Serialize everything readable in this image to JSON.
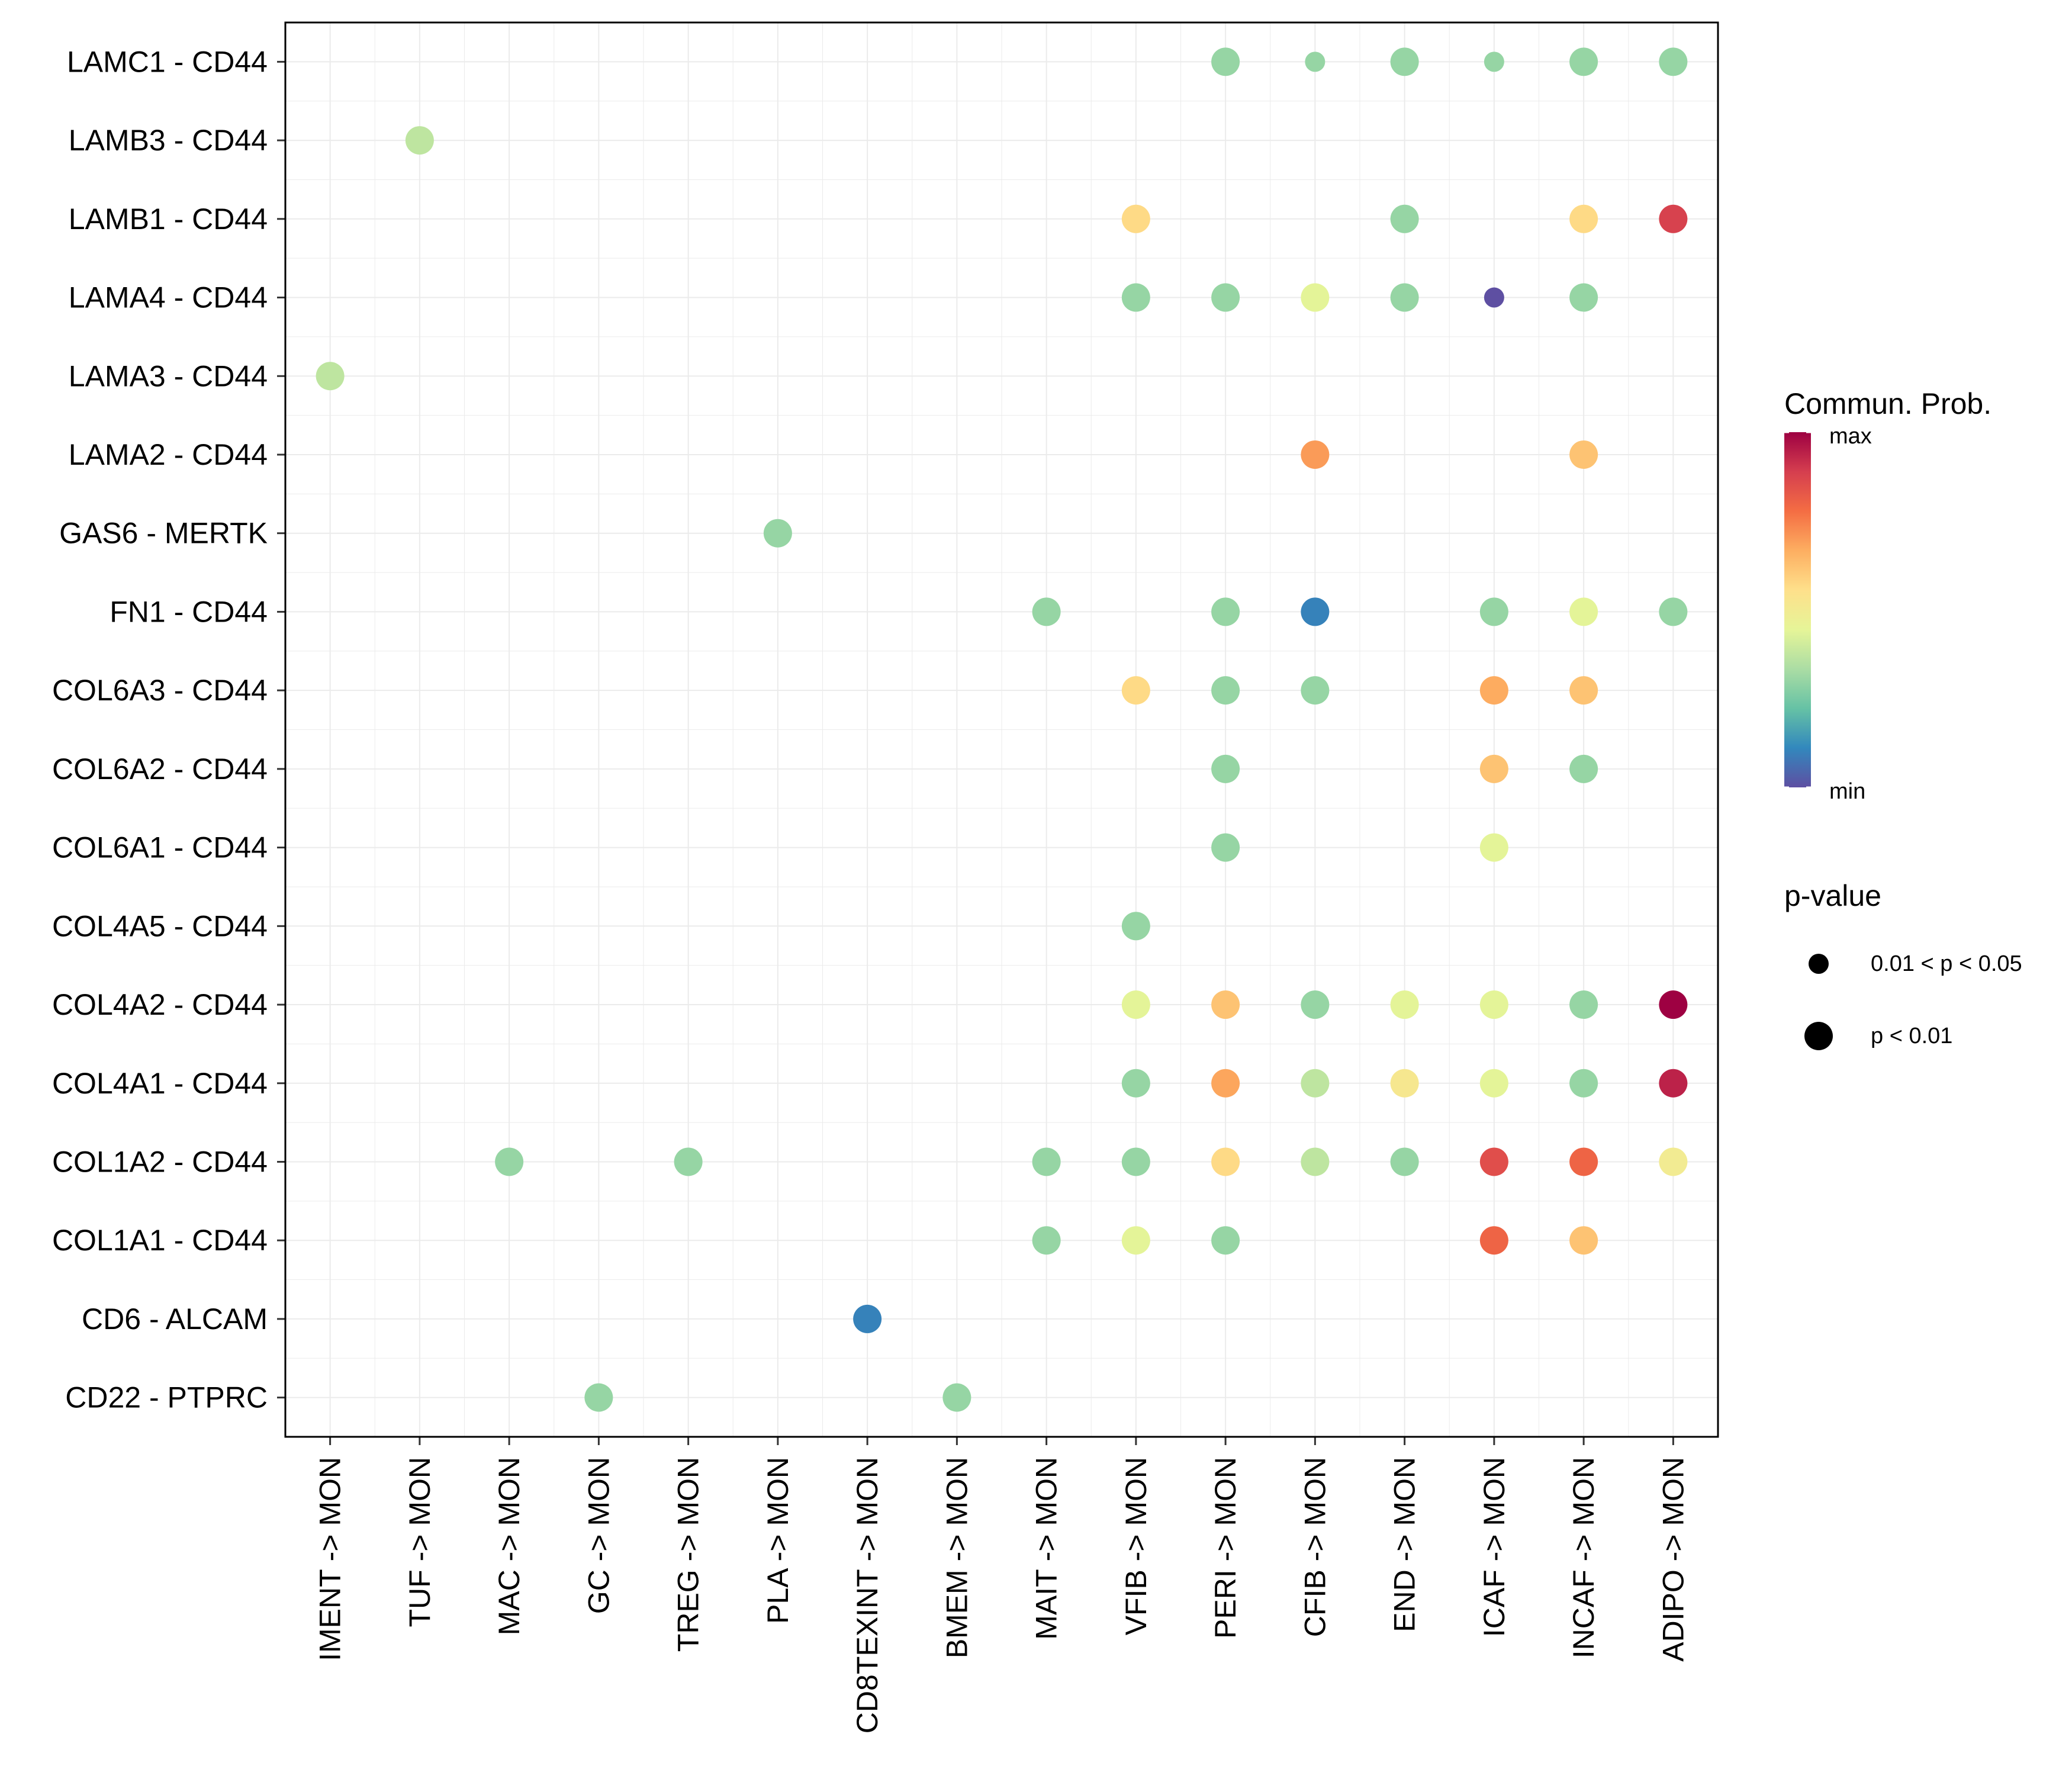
{
  "chart_data": {
    "type": "bubble",
    "title": "",
    "xlabel": "",
    "ylabel": "",
    "x_categories": [
      "IMENT -> MON",
      "TUF -> MON",
      "MAC -> MON",
      "GC -> MON",
      "TREG -> MON",
      "PLA -> MON",
      "CD8TEXINT -> MON",
      "BMEM -> MON",
      "MAIT -> MON",
      "VFIB -> MON",
      "PERI -> MON",
      "CFIB -> MON",
      "END -> MON",
      "ICAF -> MON",
      "INCAF -> MON",
      "ADIPO -> MON"
    ],
    "y_categories": [
      "LAMC1 - CD44",
      "LAMB3 - CD44",
      "LAMB1 - CD44",
      "LAMA4 - CD44",
      "LAMA3 - CD44",
      "LAMA2 - CD44",
      "GAS6 - MERTK",
      "FN1 - CD44",
      "COL6A3 - CD44",
      "COL6A2 - CD44",
      "COL6A1 - CD44",
      "COL4A5 - CD44",
      "COL4A2 - CD44",
      "COL4A1 - CD44",
      "COL1A2 - CD44",
      "COL1A1 - CD44",
      "CD6 - ALCAM",
      "CD22 - PTPRC"
    ],
    "value_note": "prob is relative communication probability on a 0 (min) to 1 (max) color scale; p is the p-value class (0 = p < 0.01, 1 = 0.01 < p < 0.05)",
    "points": [
      {
        "y": "LAMC1 - CD44",
        "x": "PERI -> MON",
        "prob": 0.3,
        "p": 0
      },
      {
        "y": "LAMC1 - CD44",
        "x": "CFIB -> MON",
        "prob": 0.3,
        "p": 1
      },
      {
        "y": "LAMC1 - CD44",
        "x": "END -> MON",
        "prob": 0.3,
        "p": 0
      },
      {
        "y": "LAMC1 - CD44",
        "x": "ICAF -> MON",
        "prob": 0.3,
        "p": 1
      },
      {
        "y": "LAMC1 - CD44",
        "x": "INCAF -> MON",
        "prob": 0.3,
        "p": 0
      },
      {
        "y": "LAMC1 - CD44",
        "x": "ADIPO -> MON",
        "prob": 0.3,
        "p": 0
      },
      {
        "y": "LAMB3 - CD44",
        "x": "TUF -> MON",
        "prob": 0.37,
        "p": 0
      },
      {
        "y": "LAMB1 - CD44",
        "x": "VFIB -> MON",
        "prob": 0.57,
        "p": 0
      },
      {
        "y": "LAMB1 - CD44",
        "x": "END -> MON",
        "prob": 0.3,
        "p": 0
      },
      {
        "y": "LAMB1 - CD44",
        "x": "INCAF -> MON",
        "prob": 0.57,
        "p": 0
      },
      {
        "y": "LAMB1 - CD44",
        "x": "ADIPO -> MON",
        "prob": 0.88,
        "p": 0
      },
      {
        "y": "LAMA4 - CD44",
        "x": "VFIB -> MON",
        "prob": 0.3,
        "p": 0
      },
      {
        "y": "LAMA4 - CD44",
        "x": "PERI -> MON",
        "prob": 0.3,
        "p": 0
      },
      {
        "y": "LAMA4 - CD44",
        "x": "CFIB -> MON",
        "prob": 0.44,
        "p": 0
      },
      {
        "y": "LAMA4 - CD44",
        "x": "END -> MON",
        "prob": 0.3,
        "p": 0
      },
      {
        "y": "LAMA4 - CD44",
        "x": "ICAF -> MON",
        "prob": 0.0,
        "p": 1
      },
      {
        "y": "LAMA4 - CD44",
        "x": "INCAF -> MON",
        "prob": 0.3,
        "p": 0
      },
      {
        "y": "LAMA3 - CD44",
        "x": "IMENT -> MON",
        "prob": 0.37,
        "p": 0
      },
      {
        "y": "LAMA2 - CD44",
        "x": "CFIB -> MON",
        "prob": 0.7,
        "p": 0
      },
      {
        "y": "LAMA2 - CD44",
        "x": "INCAF -> MON",
        "prob": 0.62,
        "p": 0
      },
      {
        "y": "GAS6 - MERTK",
        "x": "PLA -> MON",
        "prob": 0.3,
        "p": 0
      },
      {
        "y": "FN1 - CD44",
        "x": "MAIT -> MON",
        "prob": 0.3,
        "p": 0
      },
      {
        "y": "FN1 - CD44",
        "x": "PERI -> MON",
        "prob": 0.3,
        "p": 0
      },
      {
        "y": "FN1 - CD44",
        "x": "CFIB -> MON",
        "prob": 0.1,
        "p": 0
      },
      {
        "y": "FN1 - CD44",
        "x": "ICAF -> MON",
        "prob": 0.3,
        "p": 0
      },
      {
        "y": "FN1 - CD44",
        "x": "INCAF -> MON",
        "prob": 0.44,
        "p": 0
      },
      {
        "y": "FN1 - CD44",
        "x": "ADIPO -> MON",
        "prob": 0.3,
        "p": 0
      },
      {
        "y": "COL6A3 - CD44",
        "x": "VFIB -> MON",
        "prob": 0.57,
        "p": 0
      },
      {
        "y": "COL6A3 - CD44",
        "x": "PERI -> MON",
        "prob": 0.3,
        "p": 0
      },
      {
        "y": "COL6A3 - CD44",
        "x": "CFIB -> MON",
        "prob": 0.3,
        "p": 0
      },
      {
        "y": "COL6A3 - CD44",
        "x": "ICAF -> MON",
        "prob": 0.67,
        "p": 0
      },
      {
        "y": "COL6A3 - CD44",
        "x": "INCAF -> MON",
        "prob": 0.62,
        "p": 0
      },
      {
        "y": "COL6A2 - CD44",
        "x": "PERI -> MON",
        "prob": 0.3,
        "p": 0
      },
      {
        "y": "COL6A2 - CD44",
        "x": "ICAF -> MON",
        "prob": 0.62,
        "p": 0
      },
      {
        "y": "COL6A2 - CD44",
        "x": "INCAF -> MON",
        "prob": 0.3,
        "p": 0
      },
      {
        "y": "COL6A1 - CD44",
        "x": "PERI -> MON",
        "prob": 0.3,
        "p": 0
      },
      {
        "y": "COL6A1 - CD44",
        "x": "ICAF -> MON",
        "prob": 0.44,
        "p": 0
      },
      {
        "y": "COL4A5 - CD44",
        "x": "VFIB -> MON",
        "prob": 0.3,
        "p": 0
      },
      {
        "y": "COL4A2 - CD44",
        "x": "VFIB -> MON",
        "prob": 0.44,
        "p": 0
      },
      {
        "y": "COL4A2 - CD44",
        "x": "PERI -> MON",
        "prob": 0.62,
        "p": 0
      },
      {
        "y": "COL4A2 - CD44",
        "x": "CFIB -> MON",
        "prob": 0.3,
        "p": 0
      },
      {
        "y": "COL4A2 - CD44",
        "x": "END -> MON",
        "prob": 0.44,
        "p": 0
      },
      {
        "y": "COL4A2 - CD44",
        "x": "ICAF -> MON",
        "prob": 0.44,
        "p": 0
      },
      {
        "y": "COL4A2 - CD44",
        "x": "INCAF -> MON",
        "prob": 0.3,
        "p": 0
      },
      {
        "y": "COL4A2 - CD44",
        "x": "ADIPO -> MON",
        "prob": 1.0,
        "p": 0
      },
      {
        "y": "COL4A1 - CD44",
        "x": "VFIB -> MON",
        "prob": 0.3,
        "p": 0
      },
      {
        "y": "COL4A1 - CD44",
        "x": "PERI -> MON",
        "prob": 0.68,
        "p": 0
      },
      {
        "y": "COL4A1 - CD44",
        "x": "CFIB -> MON",
        "prob": 0.37,
        "p": 0
      },
      {
        "y": "COL4A1 - CD44",
        "x": "END -> MON",
        "prob": 0.52,
        "p": 0
      },
      {
        "y": "COL4A1 - CD44",
        "x": "ICAF -> MON",
        "prob": 0.44,
        "p": 0
      },
      {
        "y": "COL4A1 - CD44",
        "x": "INCAF -> MON",
        "prob": 0.3,
        "p": 0
      },
      {
        "y": "COL4A1 - CD44",
        "x": "ADIPO -> MON",
        "prob": 0.94,
        "p": 0
      },
      {
        "y": "COL1A2 - CD44",
        "x": "MAC -> MON",
        "prob": 0.3,
        "p": 0
      },
      {
        "y": "COL1A2 - CD44",
        "x": "TREG -> MON",
        "prob": 0.3,
        "p": 0
      },
      {
        "y": "COL1A2 - CD44",
        "x": "MAIT -> MON",
        "prob": 0.3,
        "p": 0
      },
      {
        "y": "COL1A2 - CD44",
        "x": "VFIB -> MON",
        "prob": 0.3,
        "p": 0
      },
      {
        "y": "COL1A2 - CD44",
        "x": "PERI -> MON",
        "prob": 0.57,
        "p": 0
      },
      {
        "y": "COL1A2 - CD44",
        "x": "CFIB -> MON",
        "prob": 0.37,
        "p": 0
      },
      {
        "y": "COL1A2 - CD44",
        "x": "END -> MON",
        "prob": 0.3,
        "p": 0
      },
      {
        "y": "COL1A2 - CD44",
        "x": "ICAF -> MON",
        "prob": 0.85,
        "p": 0
      },
      {
        "y": "COL1A2 - CD44",
        "x": "INCAF -> MON",
        "prob": 0.8,
        "p": 0
      },
      {
        "y": "COL1A2 - CD44",
        "x": "ADIPO -> MON",
        "prob": 0.5,
        "p": 0
      },
      {
        "y": "COL1A1 - CD44",
        "x": "MAIT -> MON",
        "prob": 0.3,
        "p": 0
      },
      {
        "y": "COL1A1 - CD44",
        "x": "VFIB -> MON",
        "prob": 0.44,
        "p": 0
      },
      {
        "y": "COL1A1 - CD44",
        "x": "PERI -> MON",
        "prob": 0.3,
        "p": 0
      },
      {
        "y": "COL1A1 - CD44",
        "x": "ICAF -> MON",
        "prob": 0.8,
        "p": 0
      },
      {
        "y": "COL1A1 - CD44",
        "x": "INCAF -> MON",
        "prob": 0.62,
        "p": 0
      },
      {
        "y": "CD6 - ALCAM",
        "x": "CD8TEXINT -> MON",
        "prob": 0.1,
        "p": 0
      },
      {
        "y": "CD22 - PTPRC",
        "x": "GC -> MON",
        "prob": 0.3,
        "p": 0
      },
      {
        "y": "CD22 - PTPRC",
        "x": "BMEM -> MON",
        "prob": 0.3,
        "p": 0
      }
    ],
    "colorbar": {
      "title": "Commun. Prob.",
      "max_label": "max",
      "min_label": "min",
      "palette": [
        "#5E4FA2",
        "#3288BD",
        "#66C2A5",
        "#ABDDA4",
        "#E6F598",
        "#FEE08B",
        "#FDAE61",
        "#F46D43",
        "#D53E4F",
        "#9E0142"
      ]
    },
    "size_legend": {
      "title": "p-value",
      "entries": [
        {
          "label": "0.01 < p < 0.05",
          "p": 1
        },
        {
          "label": "p < 0.01",
          "p": 0
        }
      ]
    },
    "grid": true
  }
}
